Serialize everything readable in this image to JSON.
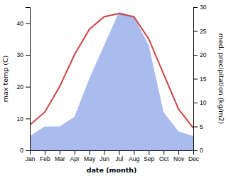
{
  "chart_data": {
    "type": "line",
    "xlabel": "date (month)",
    "ylabel": "max temp (C)",
    "y2label": "med. precipitation (kg/m2)",
    "categories": [
      "Jan",
      "Feb",
      "Mar",
      "Apr",
      "May",
      "Jun",
      "Jul",
      "Aug",
      "Sep",
      "Oct",
      "Nov",
      "Dec"
    ],
    "series": [
      {
        "type": "area",
        "axis": "y2",
        "color": "#aabbee",
        "values": [
          3.0,
          5.0,
          5.0,
          7.0,
          15.0,
          22.0,
          29.0,
          28.0,
          22.0,
          8.0,
          4.0,
          3.0
        ]
      },
      {
        "type": "line",
        "color": "#cc4444",
        "values": [
          8,
          12,
          20,
          30,
          38,
          42,
          43,
          42,
          35,
          24,
          13,
          7
        ]
      }
    ],
    "ylim": [
      0,
      45
    ],
    "yticks": [
      0,
      10,
      20,
      30,
      40
    ],
    "y2lim": [
      0,
      30
    ],
    "y2ticks": [
      0,
      5,
      10,
      15,
      20,
      25,
      30
    ],
    "grid": false
  }
}
